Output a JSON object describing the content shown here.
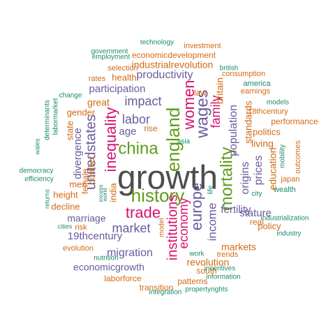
{
  "colors": {
    "gray": "#4d4d4d",
    "purple": "#6a5a9e",
    "pink": "#d6126f",
    "green": "#5f9c1a",
    "teal": "#1b8a6b",
    "orange": "#d36a14"
  },
  "words": [
    {
      "text": "growth",
      "color": "gray"
    },
    {
      "text": "history",
      "color": "green"
    },
    {
      "text": "china",
      "color": "green"
    },
    {
      "text": "england",
      "color": "green"
    },
    {
      "text": "wages",
      "color": "purple"
    },
    {
      "text": "women",
      "color": "pink"
    },
    {
      "text": "family",
      "color": "pink"
    },
    {
      "text": "mortality",
      "color": "green"
    },
    {
      "text": "inequality",
      "color": "pink"
    },
    {
      "text": "unitedstates",
      "color": "purple"
    },
    {
      "text": "trade",
      "color": "pink"
    },
    {
      "text": "europe",
      "color": "purple"
    },
    {
      "text": "institutions",
      "color": "pink"
    },
    {
      "text": "economy",
      "color": "pink"
    },
    {
      "text": "income",
      "color": "purple"
    },
    {
      "text": "market",
      "color": "purple"
    },
    {
      "text": "productivity",
      "color": "purple"
    },
    {
      "text": "impact",
      "color": "purple"
    },
    {
      "text": "labor",
      "color": "purple"
    },
    {
      "text": "population",
      "color": "purple"
    },
    {
      "text": "origins",
      "color": "purple"
    },
    {
      "text": "prices",
      "color": "purple"
    },
    {
      "text": "fertility",
      "color": "purple"
    },
    {
      "text": "stature",
      "color": "purple"
    },
    {
      "text": "marriage",
      "color": "purple"
    },
    {
      "text": "migration",
      "color": "purple"
    },
    {
      "text": "19thcentury",
      "color": "purple"
    },
    {
      "text": "economicgrowth",
      "color": "purple"
    },
    {
      "text": "divergence",
      "color": "purple"
    },
    {
      "text": "participation",
      "color": "purple"
    },
    {
      "text": "age",
      "color": "purple"
    },
    {
      "text": "industrialrevolution",
      "color": "orange"
    },
    {
      "text": "economicdevelopment",
      "color": "orange"
    },
    {
      "text": "investment",
      "color": "orange"
    },
    {
      "text": "health",
      "color": "orange"
    },
    {
      "text": "selection",
      "color": "orange"
    },
    {
      "text": "rates",
      "color": "orange"
    },
    {
      "text": "great",
      "color": "orange"
    },
    {
      "text": "gender",
      "color": "orange"
    },
    {
      "text": "men",
      "color": "orange"
    },
    {
      "text": "height",
      "color": "orange"
    },
    {
      "text": "decline",
      "color": "orange"
    },
    {
      "text": "risk",
      "color": "orange"
    },
    {
      "text": "evolution",
      "color": "orange"
    },
    {
      "text": "laborforce",
      "color": "orange"
    },
    {
      "text": "transition",
      "color": "orange"
    },
    {
      "text": "patterns",
      "color": "orange"
    },
    {
      "text": "revolution",
      "color": "orange"
    },
    {
      "text": "markets",
      "color": "orange"
    },
    {
      "text": "south",
      "color": "orange"
    },
    {
      "text": "trends",
      "color": "orange"
    },
    {
      "text": "policy",
      "color": "orange"
    },
    {
      "text": "real",
      "color": "orange"
    },
    {
      "text": "education",
      "color": "orange"
    },
    {
      "text": "living",
      "color": "orange"
    },
    {
      "text": "standards",
      "color": "orange"
    },
    {
      "text": "politics",
      "color": "orange"
    },
    {
      "text": "performance",
      "color": "orange"
    },
    {
      "text": "18thcentury",
      "color": "orange"
    },
    {
      "text": "earnings",
      "color": "orange"
    },
    {
      "text": "consumption",
      "color": "orange"
    },
    {
      "text": "britain",
      "color": "orange"
    },
    {
      "text": "law",
      "color": "orange"
    },
    {
      "text": "rise",
      "color": "orange"
    },
    {
      "text": "india",
      "color": "orange"
    },
    {
      "text": "conflict",
      "color": "orange"
    },
    {
      "text": "female",
      "color": "orange"
    },
    {
      "text": "state",
      "color": "orange"
    },
    {
      "text": "model",
      "color": "orange"
    },
    {
      "text": "japan",
      "color": "orange"
    },
    {
      "text": "outcomes",
      "color": "orange"
    },
    {
      "text": "technology",
      "color": "teal"
    },
    {
      "text": "government",
      "color": "teal"
    },
    {
      "text": "employment",
      "color": "teal"
    },
    {
      "text": "british",
      "color": "teal"
    },
    {
      "text": "america",
      "color": "teal"
    },
    {
      "text": "models",
      "color": "teal"
    },
    {
      "text": "change",
      "color": "teal"
    },
    {
      "text": "determinants",
      "color": "teal"
    },
    {
      "text": "labormarket",
      "color": "teal"
    },
    {
      "text": "wales",
      "color": "teal"
    },
    {
      "text": "democracy",
      "color": "teal"
    },
    {
      "text": "efficiency",
      "color": "teal"
    },
    {
      "text": "returns",
      "color": "teal"
    },
    {
      "text": "cities",
      "color": "teal"
    },
    {
      "text": "excess",
      "color": "teal"
    },
    {
      "text": "world",
      "color": "teal"
    },
    {
      "text": "asia",
      "color": "teal"
    },
    {
      "text": "life",
      "color": "teal"
    },
    {
      "text": "mobility",
      "color": "teal"
    },
    {
      "text": "city",
      "color": "teal"
    },
    {
      "text": "wealth",
      "color": "teal"
    },
    {
      "text": "industrialization",
      "color": "teal"
    },
    {
      "text": "industry",
      "color": "teal"
    },
    {
      "text": "nutrition",
      "color": "teal"
    },
    {
      "text": "work",
      "color": "teal"
    },
    {
      "text": "incentives",
      "color": "teal"
    },
    {
      "text": "information",
      "color": "teal"
    },
    {
      "text": "propertyrights",
      "color": "teal"
    },
    {
      "text": "integration",
      "color": "teal"
    }
  ]
}
